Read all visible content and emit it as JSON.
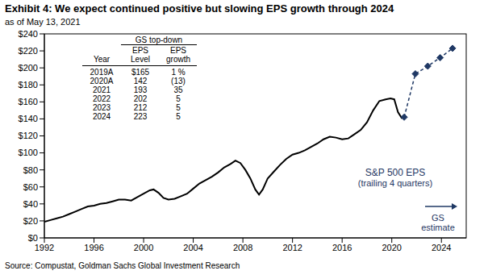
{
  "chart_data": {
    "type": "line",
    "title": "Exhibit 4: We expect continued positive but slowing EPS growth through 2024",
    "subtitle": "as of May 13, 2021",
    "source": "Source: Compustat, Goldman Sachs Global Investment Research",
    "xlim": [
      1992,
      2026
    ],
    "xticks": [
      1992,
      1996,
      2000,
      2004,
      2008,
      2012,
      2016,
      2020,
      2024
    ],
    "ylim": [
      0,
      240
    ],
    "yticks": [
      {
        "value": 0,
        "label": "$0"
      },
      {
        "value": 20,
        "label": "$20"
      },
      {
        "value": 40,
        "label": "$40"
      },
      {
        "value": 60,
        "label": "$60"
      },
      {
        "value": 80,
        "label": "$80"
      },
      {
        "value": 100,
        "label": "$100"
      },
      {
        "value": 120,
        "label": "$120"
      },
      {
        "value": 140,
        "label": "$140"
      },
      {
        "value": 160,
        "label": "$160"
      },
      {
        "value": 180,
        "label": "$180"
      },
      {
        "value": 200,
        "label": "$200"
      },
      {
        "value": 220,
        "label": "$220"
      },
      {
        "value": 240,
        "label": "$240"
      }
    ],
    "grid": false,
    "series": [
      {
        "name": "S&P 500 EPS",
        "color": "#000000",
        "line_style": "solid",
        "marker": "none",
        "x": [
          1992.0,
          1992.5,
          1993.0,
          1993.5,
          1994.0,
          1994.5,
          1995.0,
          1995.5,
          1996.0,
          1996.5,
          1997.0,
          1997.5,
          1998.0,
          1998.5,
          1999.0,
          1999.5,
          2000.0,
          2000.5,
          2000.8,
          2001.2,
          2001.6,
          2002.0,
          2002.5,
          2003.0,
          2003.5,
          2004.0,
          2004.5,
          2005.0,
          2005.5,
          2006.0,
          2006.5,
          2007.0,
          2007.4,
          2007.8,
          2008.2,
          2008.6,
          2009.0,
          2009.3,
          2009.6,
          2010.0,
          2010.5,
          2011.0,
          2011.5,
          2012.0,
          2012.5,
          2013.0,
          2013.5,
          2014.0,
          2014.5,
          2015.0,
          2015.5,
          2016.0,
          2016.5,
          2017.0,
          2017.5,
          2018.0,
          2018.5,
          2019.0,
          2019.5,
          2019.9,
          2020.2,
          2020.5,
          2020.8,
          2021.0
        ],
        "values": [
          19,
          21,
          23,
          25,
          28,
          31,
          34,
          37,
          38,
          40,
          41,
          43,
          45,
          45,
          44,
          48,
          52,
          56,
          57,
          53,
          47,
          45,
          46,
          49,
          52,
          58,
          64,
          68,
          72,
          77,
          83,
          87,
          91,
          88,
          80,
          70,
          57,
          51,
          57,
          70,
          78,
          86,
          93,
          98,
          100,
          103,
          107,
          111,
          116,
          119,
          118,
          116,
          117,
          122,
          127,
          136,
          150,
          161,
          163,
          164,
          163,
          148,
          141,
          142
        ]
      },
      {
        "name": "GS estimate",
        "color": "#1f3864",
        "line_style": "dashed",
        "marker": "diamond",
        "x": [
          2021.0,
          2021.9,
          2022.9,
          2023.9,
          2024.9
        ],
        "values": [
          142,
          193,
          202,
          212,
          223
        ]
      }
    ],
    "annotations": [
      [
        "S&P 500 EPS",
        "(trailing 4 quarters)"
      ],
      [
        "GS",
        "estimate"
      ]
    ],
    "table": {
      "title": "GS top-down",
      "columns": [
        [
          "Year"
        ],
        [
          "EPS",
          "Level"
        ],
        [
          "EPS",
          "growth"
        ]
      ],
      "rows": [
        [
          "2019A",
          "$165",
          "1 %"
        ],
        [
          "2020A",
          "142",
          "(13)"
        ],
        [
          "2021",
          "193",
          "35"
        ],
        [
          "2022",
          "202",
          "5"
        ],
        [
          "2023",
          "212",
          "5"
        ],
        [
          "2024",
          "223",
          "5"
        ]
      ]
    }
  }
}
